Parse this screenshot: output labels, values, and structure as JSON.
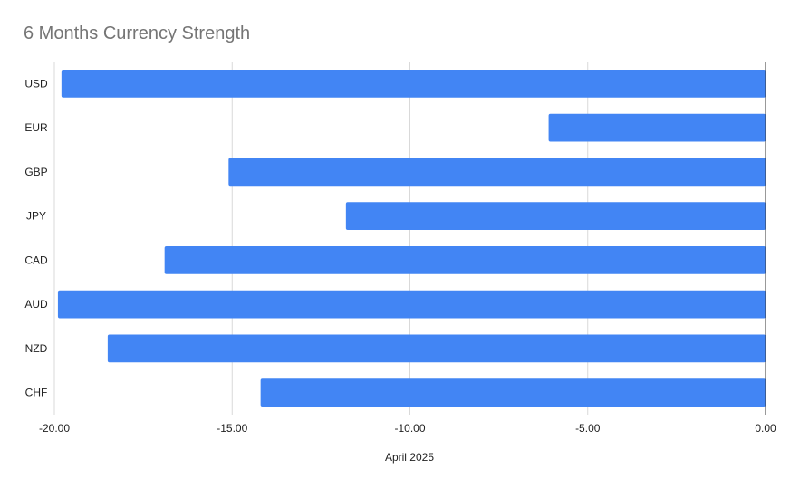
{
  "chart_data": {
    "type": "bar",
    "orientation": "horizontal",
    "title": "6 Months Currency Strength",
    "xlabel": "April 2025",
    "ylabel": "",
    "categories": [
      "USD",
      "EUR",
      "GBP",
      "JPY",
      "CAD",
      "AUD",
      "NZD",
      "CHF"
    ],
    "values": [
      -19.8,
      -6.1,
      -15.1,
      -11.8,
      -16.9,
      -19.9,
      -18.5,
      -14.2
    ],
    "xlim": [
      -20,
      0
    ],
    "xticks": [
      "-20.00",
      "-15.00",
      "-10.00",
      "-5.00",
      "0.00"
    ],
    "grid": "vertical",
    "legend": "none",
    "bar_color": "#4285f4"
  }
}
